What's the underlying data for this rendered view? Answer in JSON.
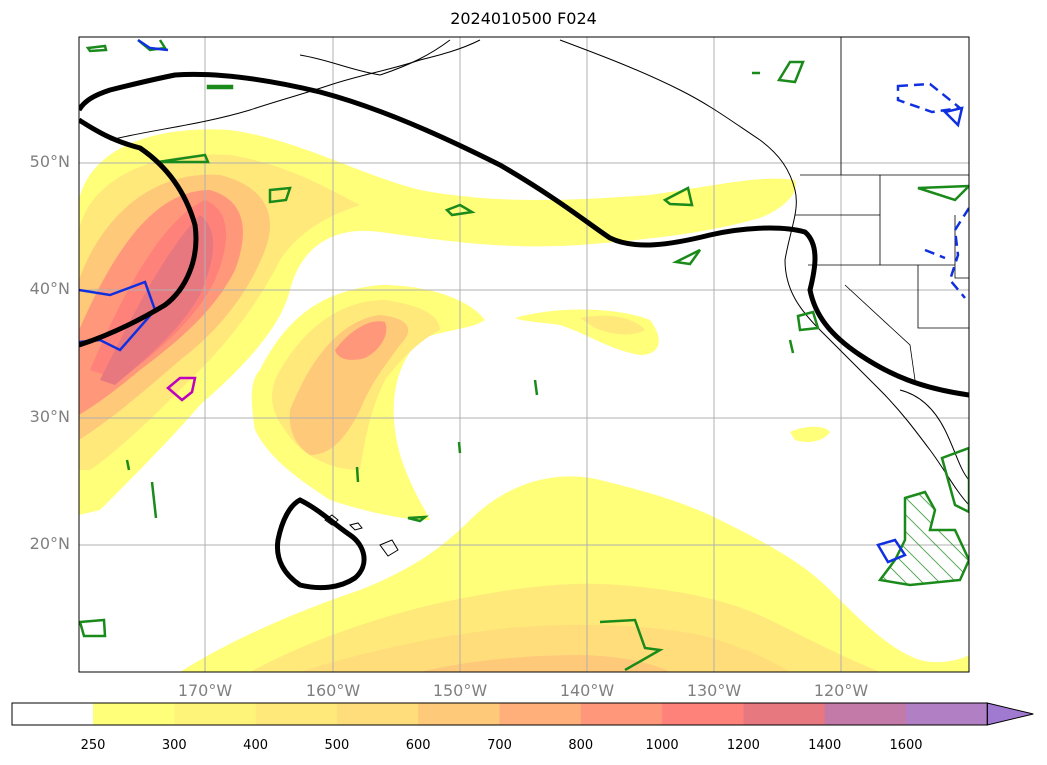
{
  "title": "2024010500 F024",
  "lat_labels": [
    "50°N",
    "40°N",
    "30°N",
    "20°N"
  ],
  "lon_labels": [
    "170°W",
    "160°W",
    "150°W",
    "140°W",
    "130°W",
    "120°W"
  ],
  "colorbar": {
    "ticks": [
      "250",
      "300",
      "400",
      "500",
      "600",
      "700",
      "800",
      "1000",
      "1200",
      "1400",
      "1600"
    ],
    "colors": [
      "#ffff7a",
      "#fff47a",
      "#ffe97a",
      "#ffdd7a",
      "#ffc97a",
      "#ffb07a",
      "#ff977a",
      "#ff827a",
      "#e87880",
      "#c47aa8",
      "#b07fc4",
      "#a07ad0"
    ],
    "extend": "max"
  },
  "map": {
    "extent_lon": [
      -180,
      -110
    ],
    "extent_lat": [
      10,
      60
    ],
    "grid": true
  }
}
